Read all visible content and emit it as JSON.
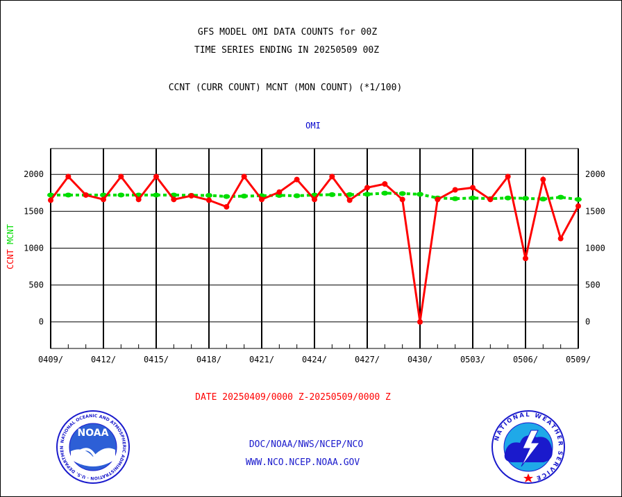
{
  "header": {
    "title_line1": "GFS MODEL OMI DATA COUNTS for 00Z",
    "title_line2": "TIME SERIES ENDING IN 20250509 00Z",
    "subtitle": "CCNT (CURR COUNT) MCNT (MON COUNT) (*1/100)"
  },
  "footer": {
    "date_range": "DATE 20250409/0000 Z-20250509/0000 Z",
    "org_path": "DOC/NOAA/NWS/NCEP/NCO",
    "website": "WWW.NCO.NCEP.NOAA.GOV"
  },
  "logos": {
    "noaa_text": "NOAA",
    "noaa_ring_text": "NATIONAL OCEANIC AND ATMOSPHERIC ADMINISTRATION · U.S. DEPARTMENT OF COMMERCE",
    "nws_ring_text": "NATIONAL WEATHER SERVICE"
  },
  "colors": {
    "ccnt": "#ff0000",
    "mcnt": "#00dd00",
    "series_label": "#0000cc",
    "footer_text": "#1a1acc",
    "date_text": "#ff0000"
  },
  "chart_data": {
    "type": "line",
    "series_label": "OMI",
    "ylabel_ccnt": "CCNT",
    "ylabel_mcnt": "MCNT",
    "ylim": [
      -360,
      2350
    ],
    "yticks": [
      0,
      500,
      1000,
      1500,
      2000
    ],
    "x_range": [
      0,
      30
    ],
    "xticks": [
      {
        "x": 0,
        "label": "0409/"
      },
      {
        "x": 3,
        "label": "0412/"
      },
      {
        "x": 6,
        "label": "0415/"
      },
      {
        "x": 9,
        "label": "0418/"
      },
      {
        "x": 12,
        "label": "0421/"
      },
      {
        "x": 15,
        "label": "0424/"
      },
      {
        "x": 18,
        "label": "0427/"
      },
      {
        "x": 21,
        "label": "0430/"
      },
      {
        "x": 24,
        "label": "0503/"
      },
      {
        "x": 27,
        "label": "0506/"
      },
      {
        "x": 30,
        "label": "0509/"
      }
    ],
    "grid": true,
    "series": [
      {
        "name": "CCNT",
        "style": "solid",
        "x": [
          0,
          1,
          2,
          3,
          4,
          5,
          6,
          7,
          8,
          9,
          10,
          11,
          12,
          13,
          14,
          15,
          16,
          17,
          18,
          19,
          20,
          21,
          22,
          23,
          24,
          25,
          26,
          27,
          28,
          29,
          30
        ],
        "values": [
          1650,
          1970,
          1720,
          1660,
          1970,
          1660,
          1970,
          1660,
          1710,
          1650,
          1560,
          1970,
          1660,
          1760,
          1930,
          1660,
          1970,
          1650,
          1820,
          1870,
          1660,
          0,
          1660,
          1790,
          1820,
          1660,
          1970,
          860,
          1930,
          1130,
          1570
        ]
      },
      {
        "name": "MCNT",
        "style": "dashed",
        "x": [
          0,
          1,
          2,
          3,
          4,
          5,
          6,
          7,
          8,
          9,
          10,
          11,
          12,
          13,
          14,
          15,
          16,
          17,
          18,
          19,
          20,
          21,
          22,
          23,
          24,
          25,
          26,
          27,
          28,
          29,
          30
        ],
        "values": [
          1720,
          1720,
          1720,
          1720,
          1720,
          1720,
          1720,
          1720,
          1715,
          1715,
          1700,
          1705,
          1710,
          1715,
          1710,
          1720,
          1725,
          1725,
          1730,
          1745,
          1740,
          1730,
          1680,
          1670,
          1680,
          1670,
          1680,
          1675,
          1665,
          1690,
          1660
        ]
      }
    ]
  }
}
